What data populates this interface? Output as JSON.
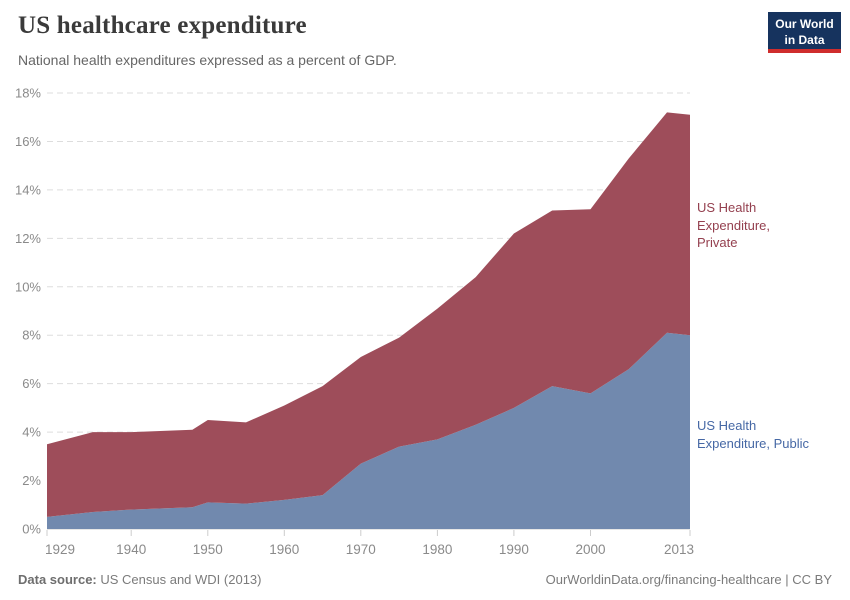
{
  "header": {
    "title": "US healthcare expenditure",
    "subtitle": "National health expenditures expressed as a percent of GDP."
  },
  "logo": {
    "line1": "Our World",
    "line2": "in Data",
    "bg_color": "#16335e",
    "accent_color": "#cf2d2d"
  },
  "chart_data": {
    "type": "area",
    "stacked": true,
    "title": "US healthcare expenditure",
    "xlabel": "",
    "ylabel": "",
    "x": [
      1929,
      1935,
      1940,
      1948,
      1950,
      1955,
      1960,
      1965,
      1970,
      1975,
      1980,
      1985,
      1990,
      1995,
      2000,
      2005,
      2010,
      2013
    ],
    "series": [
      {
        "name": "US Health Expenditure, Public",
        "color": "#7189ae",
        "label_color": "#4668a5",
        "values": [
          0.5,
          0.7,
          0.8,
          0.9,
          1.1,
          1.05,
          1.2,
          1.4,
          2.7,
          3.4,
          3.7,
          4.3,
          5.0,
          5.9,
          5.6,
          6.6,
          8.1,
          8.0
        ]
      },
      {
        "name": "US Health Expenditure, Private",
        "color": "#9e4d5a",
        "label_color": "#94404f",
        "values": [
          3.0,
          3.3,
          3.2,
          3.2,
          3.4,
          3.35,
          3.9,
          4.5,
          4.4,
          4.5,
          5.4,
          6.1,
          7.2,
          7.25,
          7.6,
          8.7,
          9.1,
          9.1
        ]
      }
    ],
    "xlim": [
      1929,
      2013
    ],
    "ylim": [
      0,
      18
    ],
    "xticks": [
      1929,
      1940,
      1950,
      1960,
      1970,
      1980,
      1990,
      2000,
      2013
    ],
    "yticks": [
      0,
      2,
      4,
      6,
      8,
      10,
      12,
      14,
      16,
      18
    ],
    "ytick_suffix": "%",
    "grid": "horizontal-dashed",
    "gridline_color": "#dddddd",
    "tick_color": "#cccccc",
    "legend_position": "right-annotations"
  },
  "annotations": {
    "private_label": "US Health\nExpenditure,\nPrivate",
    "public_label": "US Health\nExpenditure, Public"
  },
  "footer": {
    "source_label": "Data source:",
    "source_value": " US Census and WDI (2013)",
    "link": "OurWorldinData.org/financing-healthcare | CC BY"
  }
}
